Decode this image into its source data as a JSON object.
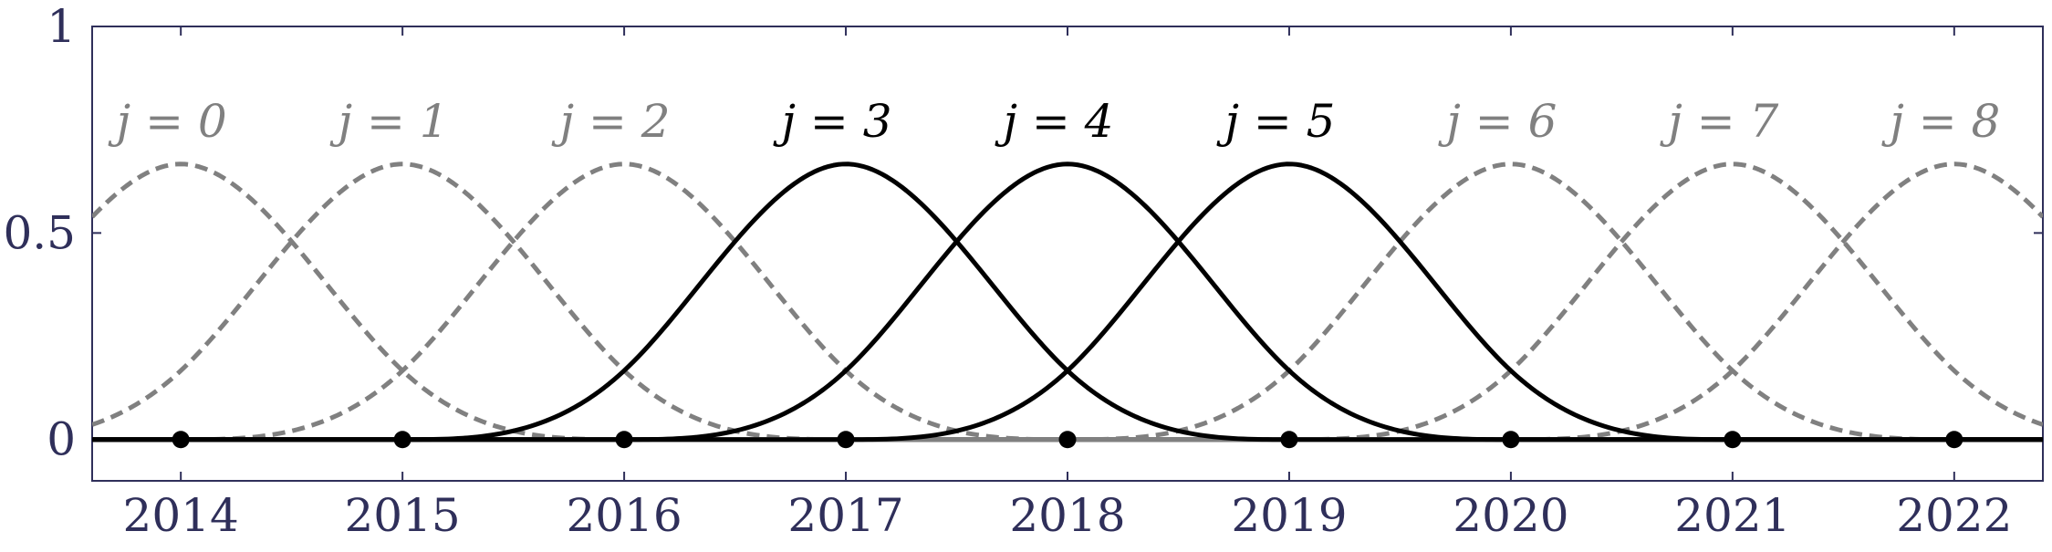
{
  "chart_data": {
    "type": "line",
    "title": "",
    "xlabel": "",
    "ylabel": "",
    "xlim": [
      2013.6,
      2022.4
    ],
    "ylim": [
      -0.1,
      1
    ],
    "xticks": [
      2014,
      2015,
      2016,
      2017,
      2018,
      2019,
      2020,
      2021,
      2022
    ],
    "xtick_labels": [
      "2014",
      "2015",
      "2016",
      "2017",
      "2018",
      "2019",
      "2020",
      "2021",
      "2022"
    ],
    "yticks": [
      0,
      0.5,
      1
    ],
    "ytick_labels": [
      "0",
      "0.5",
      "1"
    ],
    "grid": false,
    "basis": "cubic B-spline, unit knot spacing, peak 2/3",
    "series": [
      {
        "name": "j = 0",
        "center": 2014,
        "peak": 0.667,
        "style": "dashed",
        "color": "#808080"
      },
      {
        "name": "j = 1",
        "center": 2015,
        "peak": 0.667,
        "style": "dashed",
        "color": "#808080"
      },
      {
        "name": "j = 2",
        "center": 2016,
        "peak": 0.667,
        "style": "dashed",
        "color": "#808080"
      },
      {
        "name": "j = 3",
        "center": 2017,
        "peak": 0.667,
        "style": "solid",
        "color": "#000000"
      },
      {
        "name": "j = 4",
        "center": 2018,
        "peak": 0.667,
        "style": "solid",
        "color": "#000000"
      },
      {
        "name": "j = 5",
        "center": 2019,
        "peak": 0.667,
        "style": "solid",
        "color": "#000000"
      },
      {
        "name": "j = 6",
        "center": 2020,
        "peak": 0.667,
        "style": "dashed",
        "color": "#808080"
      },
      {
        "name": "j = 7",
        "center": 2021,
        "peak": 0.667,
        "style": "dashed",
        "color": "#808080"
      },
      {
        "name": "j = 8",
        "center": 2022,
        "peak": 0.667,
        "style": "dashed",
        "color": "#808080"
      }
    ],
    "knots": {
      "x": [
        2014,
        2015,
        2016,
        2017,
        2018,
        2019,
        2020,
        2021,
        2022
      ],
      "y": [
        0,
        0,
        0,
        0,
        0,
        0,
        0,
        0,
        0
      ]
    },
    "baseline": {
      "y": 0,
      "style": "solid+dashed"
    }
  },
  "colors": {
    "axis": "#2f2f5a",
    "highlight": "#000000",
    "muted": "#808080"
  }
}
